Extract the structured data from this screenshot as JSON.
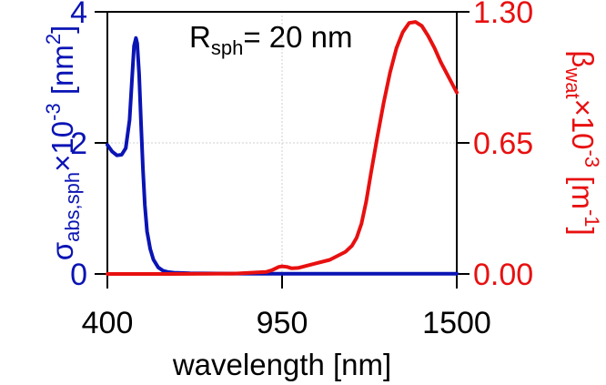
{
  "chart_data": {
    "type": "line",
    "annotation": {
      "main": "R",
      "sub": "sph",
      "rest": "= 20 nm"
    },
    "x_axis": {
      "label": "wavelength [nm]",
      "lim": [
        400,
        1500
      ],
      "ticks": [
        400,
        950,
        1500
      ],
      "tick_labels": [
        "400",
        "950",
        "1500"
      ],
      "grid": true
    },
    "y_left": {
      "label": {
        "main": "σ",
        "sub": "abs,sph",
        "mid": "×10",
        "sup": "-3",
        "tail": " [nm",
        "sup2": "2",
        "end": "]"
      },
      "lim": [
        0,
        4
      ],
      "ticks": [
        0,
        2,
        4
      ],
      "tick_labels": [
        "0",
        "2",
        "4"
      ],
      "color": "#0a14b4"
    },
    "y_right": {
      "label": {
        "main": "β",
        "sub": "wat",
        "mid": "×10",
        "sup": "-3",
        "tail": " [m",
        "sup2": "-1",
        "end": "]"
      },
      "lim": [
        0,
        1.3
      ],
      "ticks": [
        0,
        0.65,
        1.3
      ],
      "tick_labels": [
        "0.00",
        "0.65",
        "1.30"
      ],
      "color": "#e81010"
    },
    "series": [
      {
        "axis": "left",
        "color": "#0a14b4",
        "x": [
          400,
          415,
          430,
          445,
          458,
          470,
          478,
          484,
          490,
          494,
          500,
          506,
          512,
          518,
          525,
          535,
          545,
          560,
          575,
          590,
          610,
          630,
          660,
          700,
          800,
          900,
          1000,
          1100,
          1200,
          1300,
          1400,
          1500
        ],
        "y": [
          1.97,
          1.87,
          1.81,
          1.82,
          1.92,
          2.35,
          3.0,
          3.48,
          3.6,
          3.52,
          3.05,
          2.3,
          1.6,
          1.05,
          0.65,
          0.38,
          0.22,
          0.1,
          0.05,
          0.03,
          0.02,
          0.015,
          0.01,
          0.008,
          0.005,
          0.004,
          0.003,
          0.003,
          0.003,
          0.003,
          0.003,
          0.003
        ]
      },
      {
        "axis": "right",
        "color": "#e81010",
        "x": [
          400,
          600,
          800,
          900,
          920,
          940,
          950,
          965,
          980,
          1000,
          1050,
          1100,
          1150,
          1170,
          1185,
          1200,
          1215,
          1230,
          1250,
          1270,
          1290,
          1310,
          1330,
          1350,
          1370,
          1390,
          1410,
          1430,
          1450,
          1470,
          1490,
          1500
        ],
        "y": [
          0.0,
          0.0,
          0.002,
          0.01,
          0.02,
          0.035,
          0.038,
          0.035,
          0.028,
          0.03,
          0.05,
          0.07,
          0.11,
          0.14,
          0.18,
          0.25,
          0.36,
          0.5,
          0.68,
          0.85,
          1.0,
          1.12,
          1.2,
          1.245,
          1.25,
          1.23,
          1.18,
          1.12,
          1.05,
          0.99,
          0.93,
          0.9
        ]
      }
    ]
  }
}
